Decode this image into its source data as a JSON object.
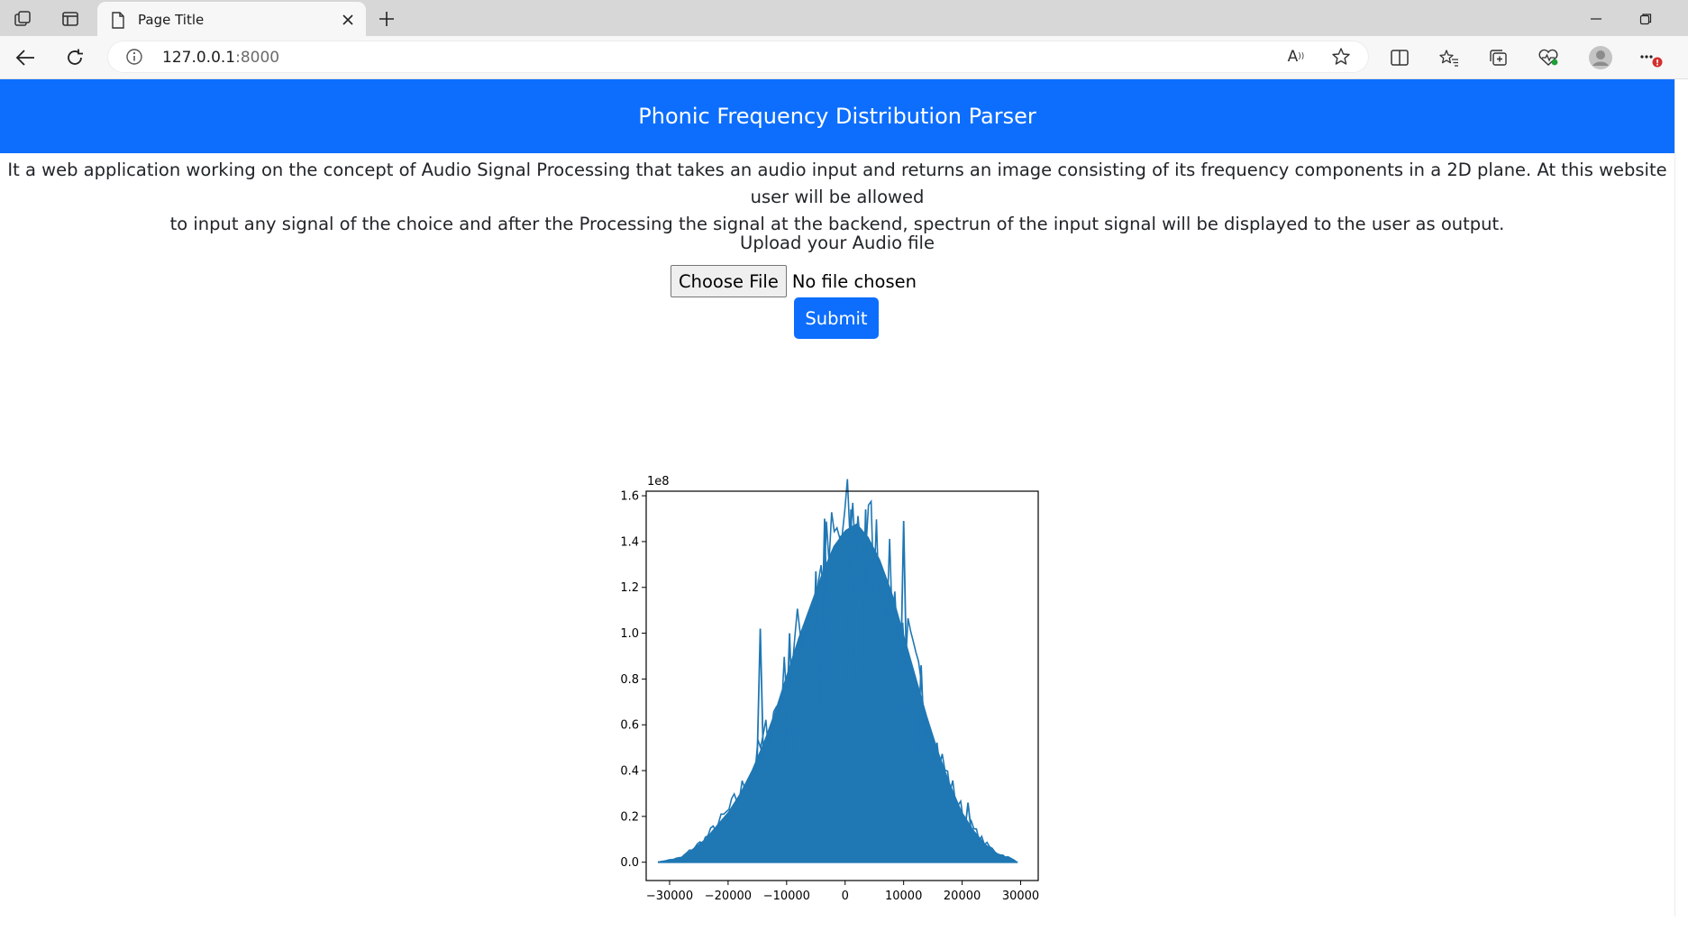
{
  "browser": {
    "tab_title": "Page Title",
    "url_host": "127.0.0.1",
    "url_port": ":8000"
  },
  "page": {
    "header_title": "Phonic Frequency Distribution Parser",
    "description_line1": "It a web application working on the concept of Audio Signal Processing that takes an audio input and returns an image consisting of its frequency components in a 2D plane. At this website user will be allowed",
    "description_line2": "to input any signal of the choice and after the Processing the signal at the backend, spectrun of the input signal will be displayed to the user as output.",
    "upload_label": "Upload your Audio file",
    "choose_file_label": "Choose File",
    "no_file_text": "No file chosen",
    "submit_label": "Submit"
  },
  "colors": {
    "accent": "#0d6efd",
    "series": "#1f77b4"
  },
  "chart_data": {
    "type": "line",
    "title": "",
    "xlabel": "",
    "ylabel": "",
    "y_scale_label": "1e8",
    "xlim": [
      -34000,
      33000
    ],
    "ylim": [
      -0.08,
      1.62
    ],
    "x_ticks": [
      -30000,
      -20000,
      -10000,
      0,
      10000,
      20000,
      30000
    ],
    "x_tick_labels": [
      "−30000",
      "−20000",
      "−10000",
      "0",
      "10000",
      "20000",
      "30000"
    ],
    "y_ticks": [
      0.0,
      0.2,
      0.4,
      0.6,
      0.8,
      1.0,
      1.2,
      1.4,
      1.6
    ],
    "y_tick_labels": [
      "0.0",
      "0.2",
      "0.4",
      "0.6",
      "0.8",
      "1.0",
      "1.2",
      "1.4",
      "1.6"
    ],
    "grid": false,
    "series": [
      {
        "color": "#1f77b4",
        "envelope": {
          "x": [
            -32000,
            -28000,
            -26000,
            -24000,
            -22000,
            -20000,
            -18000,
            -16000,
            -14000,
            -12000,
            -10000,
            -8000,
            -6000,
            -4000,
            -2000,
            0,
            2000,
            4000,
            6000,
            8000,
            10000,
            12000,
            14000,
            16000,
            18000,
            20000,
            22000,
            24000,
            26000,
            28000,
            29500
          ],
          "y": [
            0.0,
            0.02,
            0.06,
            0.1,
            0.16,
            0.22,
            0.3,
            0.4,
            0.52,
            0.66,
            0.82,
            0.98,
            1.12,
            1.26,
            1.38,
            1.45,
            1.48,
            1.42,
            1.32,
            1.18,
            1.0,
            0.82,
            0.64,
            0.48,
            0.34,
            0.22,
            0.14,
            0.08,
            0.04,
            0.02,
            0.0
          ]
        },
        "peaks": [
          {
            "x": -14500,
            "y": 1.02
          },
          {
            "x": -9500,
            "y": 1.0
          },
          {
            "x": -5000,
            "y": 1.27
          },
          {
            "x": -3500,
            "y": 1.5
          },
          {
            "x": 1000,
            "y": 1.54
          },
          {
            "x": 3500,
            "y": 1.54
          },
          {
            "x": 10000,
            "y": 1.49
          },
          {
            "x": 13000,
            "y": 0.86
          },
          {
            "x": 21000,
            "y": 0.26
          }
        ]
      }
    ]
  }
}
